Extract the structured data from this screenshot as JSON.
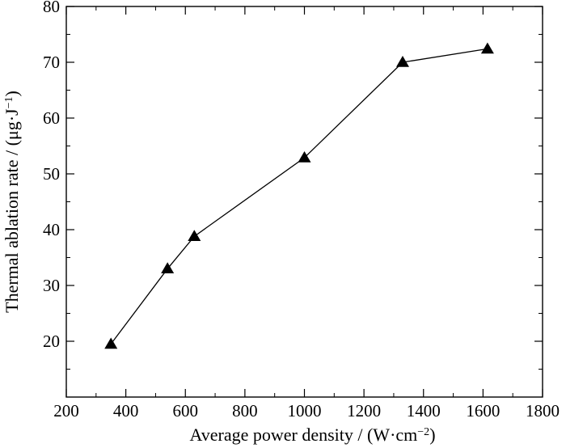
{
  "chart_data": {
    "type": "line",
    "xlabel": "Average power density / (W·cm",
    "xlabel_sup": "−2",
    "xlabel_tail": ")",
    "ylabel": "Thermal ablation rate / (μg·J",
    "ylabel_sup": "−1",
    "ylabel_tail": ")",
    "xlim": [
      200,
      1800
    ],
    "ylim": [
      10,
      80
    ],
    "x_ticks": [
      200,
      400,
      600,
      800,
      1000,
      1200,
      1400,
      1600,
      1800
    ],
    "y_ticks": [
      20,
      30,
      40,
      50,
      60,
      70,
      80
    ],
    "marker": "triangle",
    "grid": false,
    "series": [
      {
        "x": [
          350,
          540,
          630,
          1000,
          1330,
          1615
        ],
        "y": [
          19.5,
          33.0,
          38.8,
          52.9,
          70.0,
          72.4
        ]
      }
    ]
  }
}
